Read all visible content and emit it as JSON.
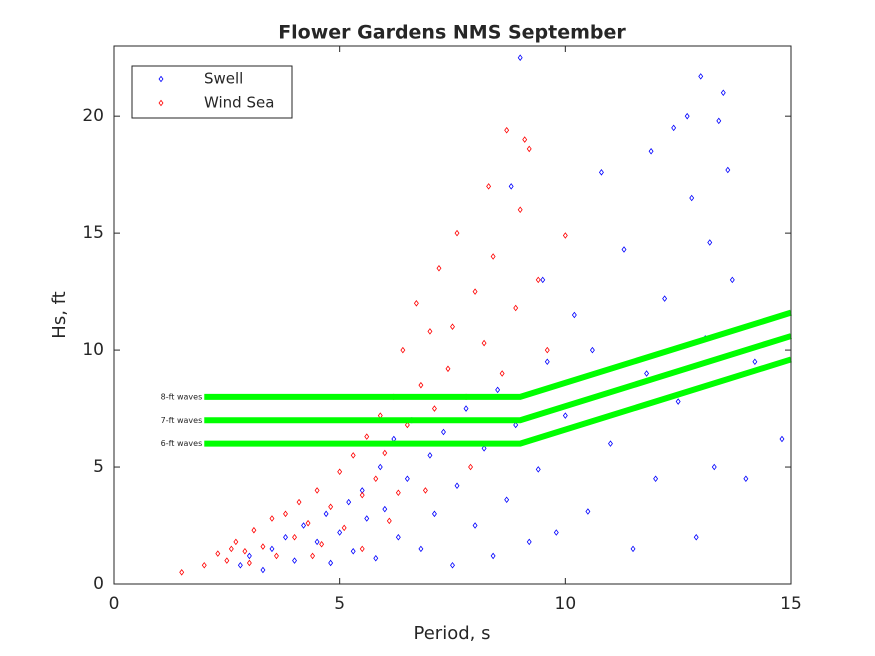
{
  "chart_data": {
    "type": "scatter",
    "title": "Flower Gardens NMS September",
    "x_label": "Period, s",
    "y_label": "Hs, ft",
    "xlim": [
      0,
      15
    ],
    "ylim": [
      0,
      23
    ],
    "xticks": [
      0,
      5,
      10,
      15
    ],
    "yticks": [
      0,
      5,
      10,
      15,
      20
    ],
    "grid": false,
    "legend_position": "upper-left",
    "series": [
      {
        "name": "Swell",
        "color": "#0000ff",
        "x": [
          2.8,
          3.0,
          3.3,
          3.5,
          3.8,
          4.0,
          4.2,
          4.5,
          4.7,
          4.8,
          5.0,
          5.2,
          5.3,
          5.5,
          5.6,
          5.8,
          5.9,
          6.0,
          6.2,
          6.3,
          6.5,
          6.6,
          6.8,
          7.0,
          7.1,
          7.3,
          7.5,
          7.6,
          7.8,
          8.0,
          8.2,
          8.4,
          8.5,
          8.7,
          8.9,
          9.0,
          9.2,
          9.4,
          9.6,
          9.8,
          10.0,
          10.2,
          10.5,
          10.8,
          11.0,
          11.3,
          11.5,
          11.8,
          12.0,
          12.2,
          12.5,
          12.7,
          12.8,
          12.9,
          13.0,
          13.1,
          13.2,
          13.3,
          13.5,
          13.6,
          13.7,
          14.0,
          14.2,
          14.8,
          11.9,
          12.4,
          13.4,
          10.6,
          9.5,
          8.8
        ],
        "values": [
          0.8,
          1.2,
          0.6,
          1.5,
          2.0,
          1.0,
          2.5,
          1.8,
          3.0,
          0.9,
          2.2,
          3.5,
          1.4,
          4.0,
          2.8,
          1.1,
          5.0,
          3.2,
          6.2,
          2.0,
          4.5,
          7.0,
          1.5,
          5.5,
          3.0,
          6.5,
          0.8,
          4.2,
          7.5,
          2.5,
          5.8,
          1.2,
          8.3,
          3.6,
          6.8,
          22.5,
          1.8,
          4.9,
          9.5,
          2.2,
          7.2,
          11.5,
          3.1,
          17.6,
          6.0,
          14.3,
          1.5,
          9.0,
          4.5,
          12.2,
          7.8,
          20.0,
          16.5,
          2.0,
          21.7,
          10.5,
          14.6,
          5.0,
          21.0,
          17.7,
          13.0,
          4.5,
          9.5,
          6.2,
          18.5,
          19.5,
          19.8,
          10.0,
          13.0,
          17.0
        ]
      },
      {
        "name": "Wind Sea",
        "color": "#ff0000",
        "x": [
          1.5,
          2.0,
          2.3,
          2.5,
          2.7,
          2.9,
          3.1,
          3.3,
          3.5,
          3.6,
          3.8,
          4.0,
          4.1,
          4.3,
          4.5,
          4.6,
          4.8,
          5.0,
          5.1,
          5.3,
          5.5,
          5.6,
          5.8,
          5.9,
          6.0,
          6.2,
          6.3,
          6.4,
          6.5,
          6.7,
          6.8,
          7.0,
          7.1,
          7.2,
          7.4,
          7.5,
          7.6,
          7.8,
          8.0,
          8.2,
          8.4,
          8.6,
          8.7,
          8.9,
          9.0,
          9.1,
          9.2,
          9.4,
          9.6,
          10.0,
          5.5,
          6.1,
          4.4,
          7.9,
          6.9,
          3.0,
          2.6,
          8.3
        ],
        "values": [
          0.5,
          0.8,
          1.3,
          1.0,
          1.8,
          1.4,
          2.3,
          1.6,
          2.8,
          1.2,
          3.0,
          2.0,
          3.5,
          2.6,
          4.0,
          1.7,
          3.3,
          4.8,
          2.4,
          5.5,
          3.8,
          6.3,
          4.5,
          7.2,
          5.6,
          8.0,
          3.9,
          10.0,
          6.8,
          12.0,
          8.5,
          10.8,
          7.5,
          13.5,
          9.2,
          11.0,
          15.0,
          8.0,
          12.5,
          10.3,
          14.0,
          9.0,
          19.4,
          11.8,
          16.0,
          19.0,
          18.6,
          13.0,
          10.0,
          14.9,
          1.5,
          2.7,
          1.2,
          5.0,
          4.0,
          0.9,
          1.5,
          17.0
        ]
      }
    ],
    "threshold_lines": [
      {
        "name": "8-ft waves",
        "color": "#00ff00",
        "x": [
          2,
          9,
          15
        ],
        "values": [
          8,
          8,
          11.6
        ]
      },
      {
        "name": "7-ft waves",
        "color": "#00ff00",
        "x": [
          2,
          9,
          15
        ],
        "values": [
          7,
          7,
          10.6
        ]
      },
      {
        "name": "6-ft waves",
        "color": "#00ff00",
        "x": [
          2,
          9,
          15
        ],
        "values": [
          6,
          6,
          9.6
        ]
      }
    ]
  }
}
